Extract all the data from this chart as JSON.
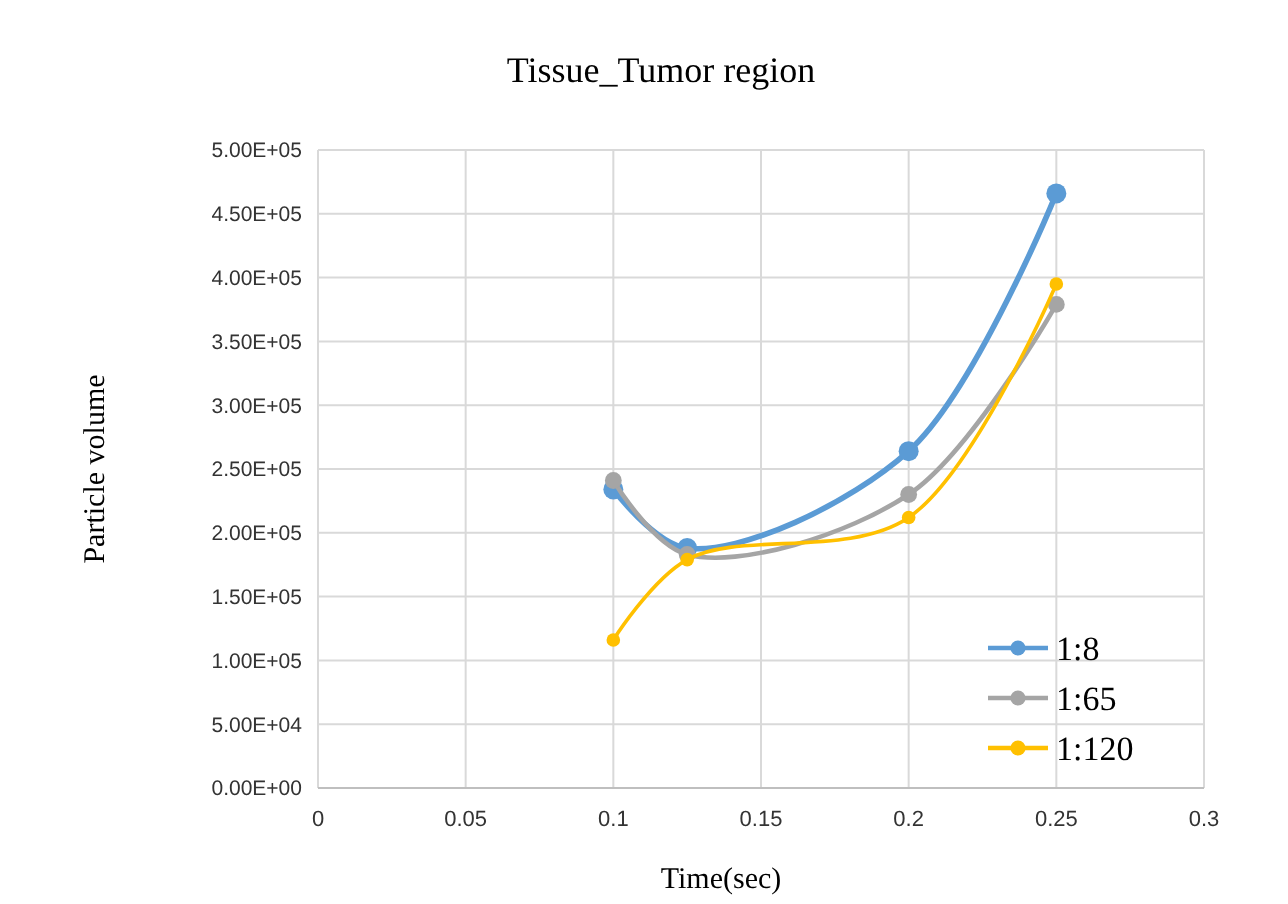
{
  "chart_data": {
    "type": "line",
    "title": "Tissue_Tumor region",
    "xlabel": "Time(sec)",
    "ylabel": "Particle  volume",
    "x": [
      0.1,
      0.125,
      0.2,
      0.25
    ],
    "series": [
      {
        "name": "1:8",
        "color": "#5b9bd5",
        "values": [
          234000,
          188000,
          264000,
          466000
        ]
      },
      {
        "name": "1:65",
        "color": "#a5a5a5",
        "values": [
          241000,
          183000,
          230000,
          379000
        ]
      },
      {
        "name": "1:120",
        "color": "#ffc000",
        "values": [
          116000,
          179000,
          212000,
          395000
        ]
      }
    ],
    "xlim": [
      0,
      0.3
    ],
    "xticks": [
      0,
      0.05,
      0.1,
      0.15,
      0.2,
      0.25,
      0.3
    ],
    "ylim": [
      0,
      500000
    ],
    "yticks": [
      {
        "value": 0,
        "label": "0.00E+00"
      },
      {
        "value": 50000,
        "label": "5.00E+04"
      },
      {
        "value": 100000,
        "label": "1.00E+05"
      },
      {
        "value": 150000,
        "label": "1.50E+05"
      },
      {
        "value": 200000,
        "label": "2.00E+05"
      },
      {
        "value": 250000,
        "label": "2.50E+05"
      },
      {
        "value": 300000,
        "label": "3.00E+05"
      },
      {
        "value": 350000,
        "label": "3.50E+05"
      },
      {
        "value": 400000,
        "label": "4.00E+05"
      },
      {
        "value": 450000,
        "label": "4.50E+05"
      },
      {
        "value": 500000,
        "label": "5.00E+05"
      }
    ],
    "grid": true,
    "legend": "bottom right",
    "marker": "circle",
    "line_style": "solid"
  }
}
